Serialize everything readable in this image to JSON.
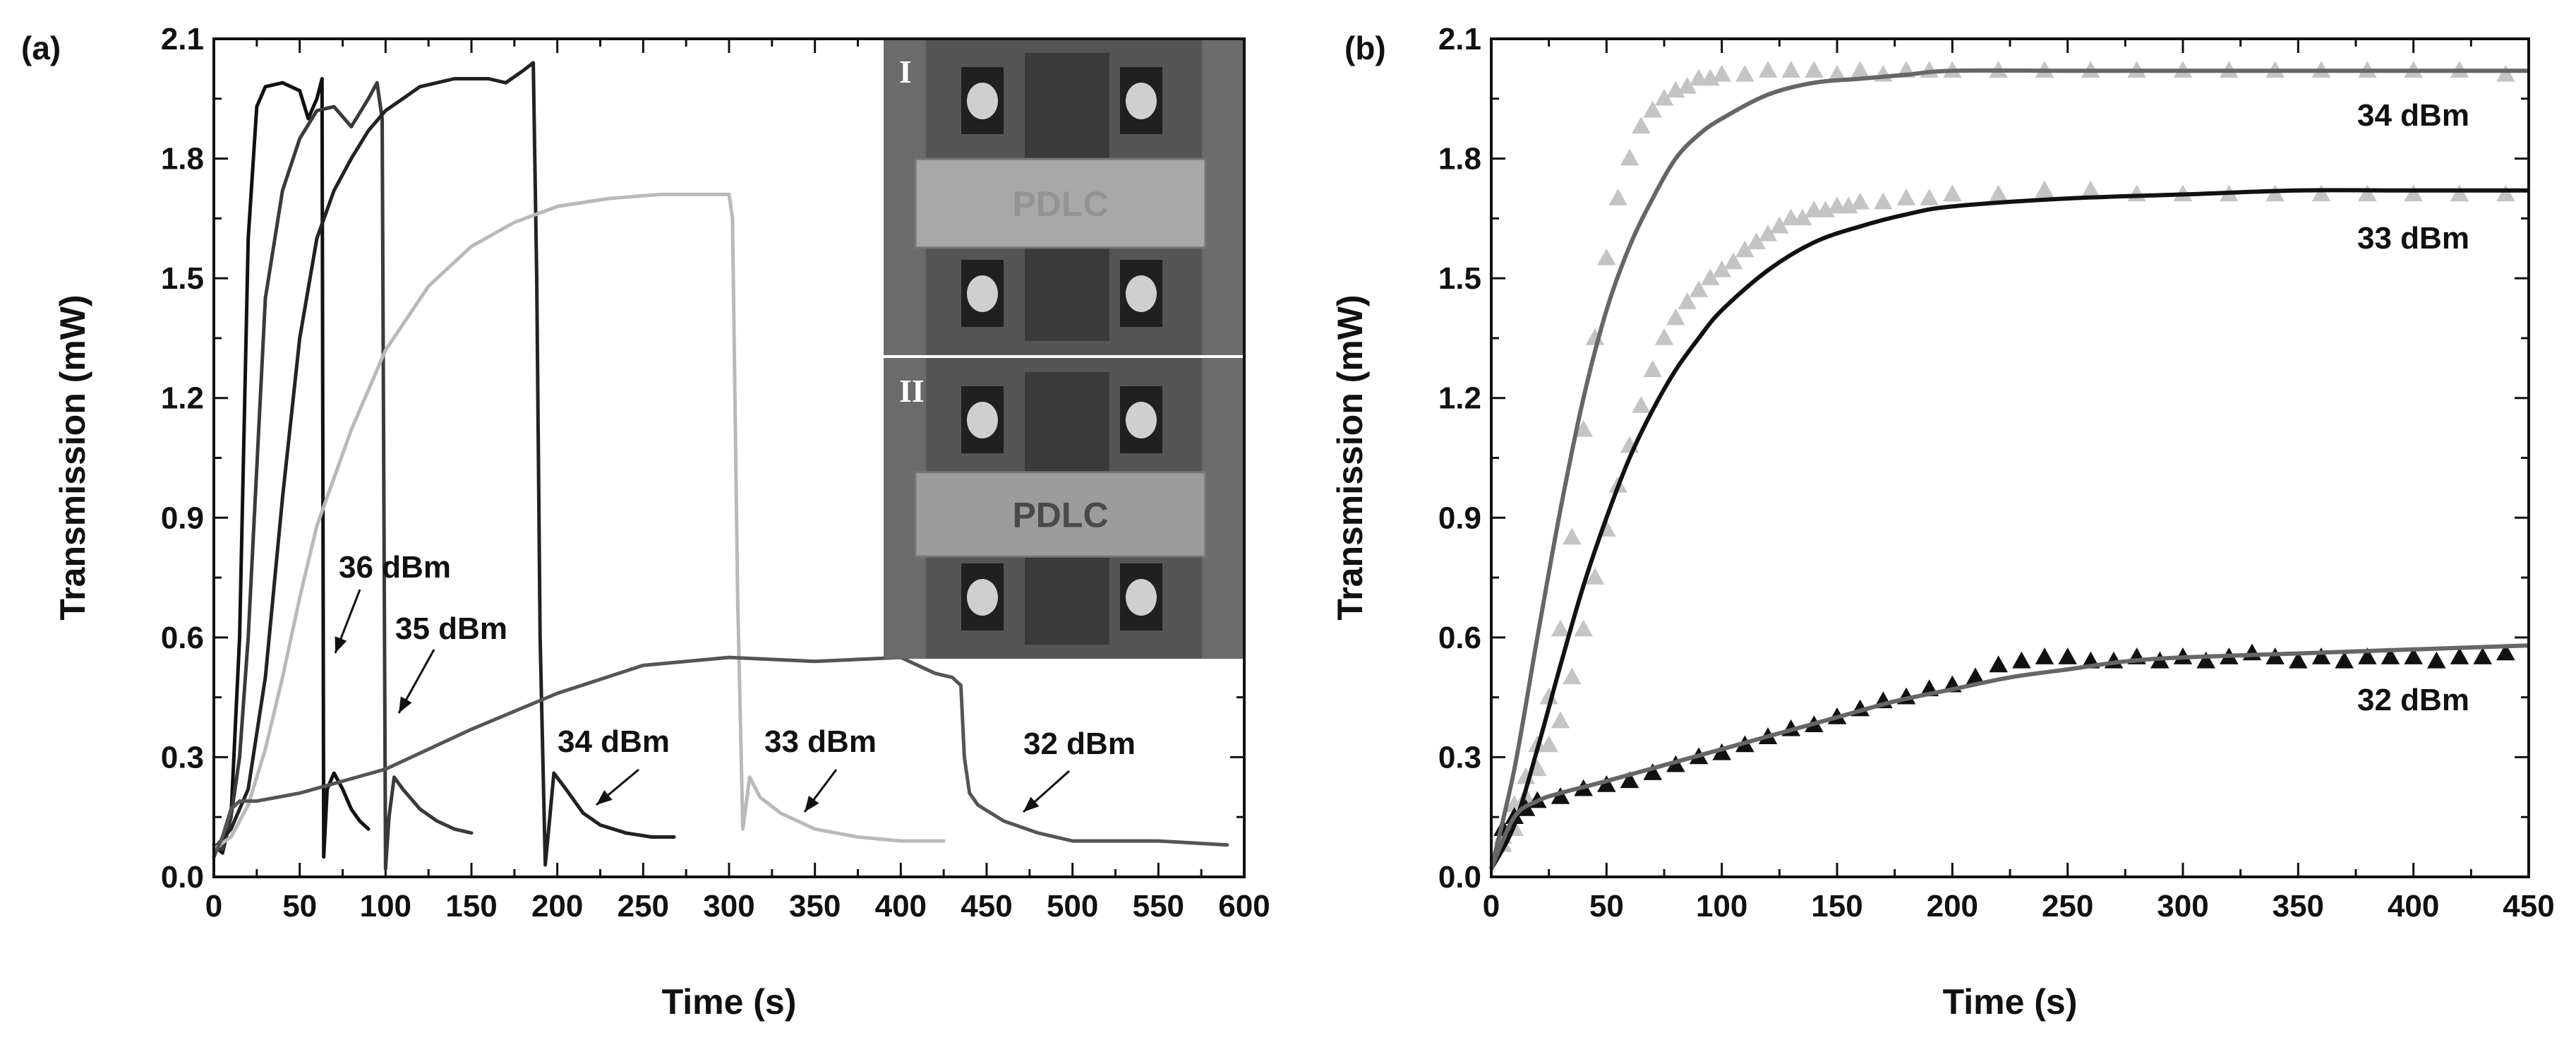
{
  "chart_data": [
    {
      "panel_label": "(a)",
      "type": "line",
      "xlabel": "Time (s)",
      "ylabel": "Transmission (mW)",
      "xlim": [
        0,
        600
      ],
      "ylim": [
        0,
        2.1
      ],
      "xticks": [
        0,
        50,
        100,
        150,
        200,
        250,
        300,
        350,
        400,
        450,
        500,
        550,
        600
      ],
      "yticks": [
        "0.0",
        "0.3",
        "0.6",
        "0.9",
        "1.2",
        "1.5",
        "1.8",
        "2.1"
      ],
      "series": [
        {
          "name": "36 dBm",
          "color": "#111111",
          "x": [
            0,
            5,
            10,
            15,
            20,
            25,
            30,
            40,
            50,
            55,
            60,
            63,
            64,
            66,
            70,
            75,
            80,
            85,
            90
          ],
          "y": [
            0.08,
            0.06,
            0.15,
            0.6,
            1.6,
            1.93,
            1.98,
            1.99,
            1.97,
            1.9,
            1.95,
            2.0,
            0.05,
            0.22,
            0.26,
            0.22,
            0.17,
            0.14,
            0.12
          ]
        },
        {
          "name": "35 dBm",
          "color": "#3a3a3a",
          "x": [
            0,
            5,
            10,
            15,
            20,
            30,
            40,
            50,
            60,
            70,
            80,
            90,
            95,
            98,
            100,
            102,
            105,
            110,
            120,
            130,
            140,
            150
          ],
          "y": [
            0.07,
            0.07,
            0.15,
            0.3,
            0.6,
            1.45,
            1.72,
            1.85,
            1.92,
            1.93,
            1.88,
            1.95,
            1.99,
            1.9,
            0.02,
            0.15,
            0.25,
            0.22,
            0.17,
            0.14,
            0.12,
            0.11
          ]
        },
        {
          "name": "34 dBm",
          "color": "#222222",
          "x": [
            0,
            10,
            20,
            30,
            40,
            50,
            60,
            70,
            80,
            90,
            100,
            110,
            120,
            140,
            160,
            170,
            180,
            186,
            188,
            190,
            193,
            195,
            198,
            205,
            215,
            225,
            240,
            255,
            268
          ],
          "y": [
            0.07,
            0.12,
            0.22,
            0.5,
            0.95,
            1.35,
            1.6,
            1.72,
            1.8,
            1.87,
            1.92,
            1.95,
            1.98,
            2.0,
            2.0,
            1.99,
            2.02,
            2.04,
            1.5,
            0.6,
            0.03,
            0.12,
            0.26,
            0.22,
            0.16,
            0.13,
            0.11,
            0.1,
            0.1
          ]
        },
        {
          "name": "33 dBm",
          "color": "#b9b9b9",
          "x": [
            0,
            10,
            20,
            30,
            40,
            50,
            60,
            80,
            100,
            125,
            150,
            175,
            200,
            230,
            260,
            290,
            300,
            302,
            305,
            308,
            312,
            318,
            330,
            350,
            375,
            400,
            425
          ],
          "y": [
            0.07,
            0.1,
            0.18,
            0.32,
            0.5,
            0.7,
            0.88,
            1.12,
            1.32,
            1.48,
            1.58,
            1.64,
            1.68,
            1.7,
            1.71,
            1.71,
            1.71,
            1.65,
            0.7,
            0.12,
            0.25,
            0.2,
            0.16,
            0.12,
            0.1,
            0.09,
            0.09
          ]
        },
        {
          "name": "32 dBm",
          "color": "#555555",
          "x": [
            0,
            5,
            10,
            15,
            25,
            50,
            100,
            150,
            200,
            250,
            300,
            350,
            400,
            420,
            430,
            435,
            437,
            440,
            445,
            460,
            480,
            500,
            525,
            550,
            590
          ],
          "y": [
            0.05,
            0.1,
            0.17,
            0.19,
            0.19,
            0.21,
            0.27,
            0.37,
            0.46,
            0.53,
            0.55,
            0.54,
            0.55,
            0.51,
            0.5,
            0.48,
            0.3,
            0.21,
            0.18,
            0.14,
            0.11,
            0.09,
            0.09,
            0.09,
            0.08
          ]
        }
      ],
      "annotations": [
        "36 dBm",
        "35 dBm",
        "34 dBm",
        "33 dBm",
        "32 dBm"
      ],
      "inset": {
        "labels": [
          "I",
          "II"
        ],
        "text": "PDLC"
      }
    },
    {
      "panel_label": "(b)",
      "type": "scatter",
      "xlabel": "Time (s)",
      "ylabel": "Transmission (mW)",
      "xlim": [
        0,
        450
      ],
      "ylim": [
        0,
        2.1
      ],
      "xticks": [
        0,
        50,
        100,
        150,
        200,
        250,
        300,
        350,
        400,
        450
      ],
      "yticks": [
        "0.0",
        "0.3",
        "0.6",
        "0.9",
        "1.2",
        "1.5",
        "1.8",
        "2.1"
      ],
      "series": [
        {
          "name": "34 dBm",
          "marker_color": "#c4c4c4",
          "fit_color": "#666666",
          "x": [
            5,
            10,
            15,
            20,
            25,
            30,
            35,
            40,
            45,
            50,
            55,
            60,
            65,
            70,
            75,
            80,
            85,
            90,
            95,
            100,
            110,
            120,
            130,
            140,
            150,
            160,
            170,
            180,
            190,
            200,
            220,
            240,
            260,
            280,
            300,
            320,
            340,
            360,
            380,
            400,
            420,
            440
          ],
          "y": [
            0.1,
            0.18,
            0.25,
            0.33,
            0.45,
            0.62,
            0.85,
            1.12,
            1.35,
            1.55,
            1.7,
            1.8,
            1.88,
            1.92,
            1.95,
            1.97,
            1.98,
            2.0,
            2.0,
            2.01,
            2.01,
            2.02,
            2.02,
            2.02,
            2.01,
            2.02,
            2.01,
            2.02,
            2.02,
            2.02,
            2.02,
            2.02,
            2.02,
            2.02,
            2.02,
            2.02,
            2.02,
            2.02,
            2.02,
            2.02,
            2.02,
            2.01
          ],
          "fit_x": [
            0,
            10,
            20,
            30,
            40,
            50,
            60,
            70,
            80,
            90,
            100,
            120,
            140,
            160,
            180,
            200,
            250,
            300,
            350,
            400,
            450
          ],
          "fit_y": [
            0.02,
            0.27,
            0.6,
            0.92,
            1.2,
            1.42,
            1.58,
            1.7,
            1.8,
            1.86,
            1.9,
            1.96,
            1.99,
            2.0,
            2.01,
            2.02,
            2.02,
            2.02,
            2.02,
            2.02,
            2.02
          ]
        },
        {
          "name": "33 dBm",
          "marker_color": "#c4c4c4",
          "fit_color": "#111111",
          "x": [
            5,
            10,
            15,
            20,
            25,
            30,
            35,
            40,
            45,
            50,
            55,
            60,
            65,
            70,
            75,
            80,
            85,
            90,
            95,
            100,
            105,
            110,
            115,
            120,
            125,
            130,
            135,
            140,
            145,
            150,
            155,
            160,
            170,
            180,
            190,
            200,
            220,
            240,
            260,
            280,
            300,
            320,
            340,
            360,
            380,
            400,
            420,
            440
          ],
          "y": [
            0.08,
            0.12,
            0.2,
            0.27,
            0.33,
            0.39,
            0.5,
            0.62,
            0.75,
            0.87,
            0.98,
            1.08,
            1.18,
            1.27,
            1.35,
            1.4,
            1.44,
            1.47,
            1.5,
            1.52,
            1.54,
            1.57,
            1.59,
            1.61,
            1.63,
            1.65,
            1.65,
            1.67,
            1.67,
            1.68,
            1.68,
            1.69,
            1.69,
            1.7,
            1.7,
            1.71,
            1.71,
            1.72,
            1.72,
            1.71,
            1.71,
            1.71,
            1.71,
            1.71,
            1.71,
            1.71,
            1.71,
            1.71
          ],
          "fit_x": [
            0,
            10,
            20,
            30,
            40,
            50,
            60,
            70,
            80,
            90,
            100,
            120,
            140,
            160,
            180,
            200,
            250,
            300,
            350,
            400,
            450
          ],
          "fit_y": [
            0.02,
            0.13,
            0.32,
            0.53,
            0.73,
            0.9,
            1.05,
            1.17,
            1.27,
            1.35,
            1.42,
            1.52,
            1.59,
            1.63,
            1.66,
            1.68,
            1.7,
            1.71,
            1.72,
            1.72,
            1.72
          ]
        },
        {
          "name": "32 dBm",
          "marker_color": "#111111",
          "fit_color": "#666666",
          "x": [
            5,
            10,
            15,
            20,
            30,
            40,
            50,
            60,
            70,
            80,
            90,
            100,
            110,
            120,
            130,
            140,
            150,
            160,
            170,
            180,
            190,
            200,
            210,
            220,
            230,
            240,
            250,
            260,
            270,
            280,
            290,
            300,
            310,
            320,
            330,
            340,
            350,
            360,
            370,
            380,
            390,
            400,
            410,
            420,
            430,
            440
          ],
          "y": [
            0.12,
            0.15,
            0.17,
            0.19,
            0.2,
            0.22,
            0.23,
            0.24,
            0.26,
            0.28,
            0.3,
            0.31,
            0.33,
            0.35,
            0.37,
            0.38,
            0.4,
            0.42,
            0.44,
            0.45,
            0.47,
            0.48,
            0.5,
            0.53,
            0.54,
            0.55,
            0.55,
            0.54,
            0.54,
            0.55,
            0.54,
            0.55,
            0.54,
            0.55,
            0.56,
            0.55,
            0.54,
            0.55,
            0.54,
            0.55,
            0.55,
            0.55,
            0.54,
            0.55,
            0.55,
            0.56
          ],
          "fit_x": [
            0,
            10,
            20,
            30,
            50,
            75,
            100,
            125,
            150,
            175,
            200,
            225,
            250,
            275,
            300,
            350,
            400,
            450
          ],
          "fit_y": [
            0.02,
            0.15,
            0.19,
            0.21,
            0.24,
            0.28,
            0.32,
            0.36,
            0.4,
            0.44,
            0.47,
            0.5,
            0.52,
            0.54,
            0.55,
            0.56,
            0.57,
            0.58
          ]
        }
      ],
      "annotations": [
        "34 dBm",
        "33 dBm",
        "32 dBm"
      ]
    }
  ]
}
